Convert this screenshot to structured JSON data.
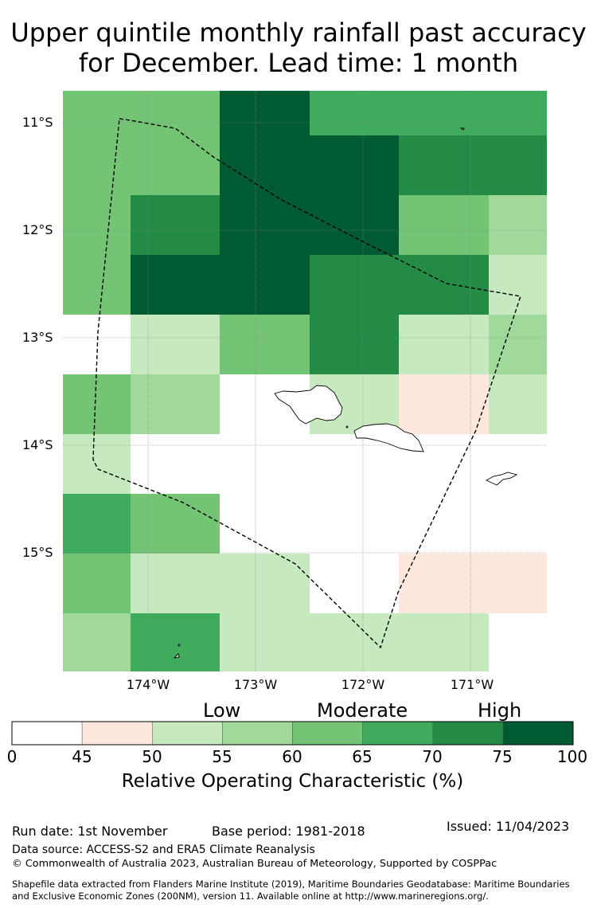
{
  "title": {
    "line1": "Upper quintile monthly rainfall past accuracy",
    "line2": "for December. Lead time: 1 month"
  },
  "map": {
    "lat_labels": [
      "11°S",
      "12°S",
      "13°S",
      "14°S",
      "15°S"
    ],
    "lon_labels": [
      "174°W",
      "173°W",
      "172°W",
      "171°W"
    ],
    "colors": {
      "c45": "#ffffff",
      "c50": "#fee8de",
      "c55": "#c7e9c0",
      "c60": "#a1d99b",
      "c65": "#74c476",
      "c70": "#41ab5d",
      "c75": "#238b45",
      "c100": "#005a32"
    },
    "cells": [
      [
        "c65",
        "c65",
        "c100",
        "c70",
        "c70",
        "c70"
      ],
      [
        "c65",
        "c65",
        "c100",
        "c100",
        "c75",
        "c75"
      ],
      [
        "c65",
        "c75",
        "c100",
        "c100",
        "c65",
        "c60"
      ],
      [
        "c65",
        "c100",
        "c100",
        "c75",
        "c75",
        "c55"
      ],
      [
        "c45",
        "c55",
        "c65",
        "c75",
        "c55",
        "c60"
      ],
      [
        "c65",
        "c60",
        "c45",
        "c55",
        "c50",
        "c55"
      ],
      [
        "c55",
        "c45",
        "c45",
        "c45",
        "c45",
        "c45"
      ],
      [
        "c70",
        "c65",
        "c45",
        "c45",
        "c45",
        "c45"
      ],
      [
        "c65",
        "c55",
        "c55",
        "c45",
        "c50",
        "c50"
      ],
      [
        "c60",
        "c70",
        "c55",
        "c55",
        "c55",
        "c45"
      ]
    ]
  },
  "colorbar": {
    "categories": [
      "Low",
      "Moderate",
      "High"
    ],
    "ticks": [
      "0",
      "45",
      "50",
      "55",
      "60",
      "65",
      "70",
      "75",
      "100"
    ],
    "segment_colors": [
      "#ffffff",
      "#fee8de",
      "#c7e9c0",
      "#a1d99b",
      "#74c476",
      "#41ab5d",
      "#238b45",
      "#005a32"
    ],
    "label": "Relative Operating Characteristic (%)"
  },
  "footer": {
    "run_date": "Run date: 1st November",
    "base_period": "Base period: 1981-2018",
    "issued": "Issued: 11/04/2023",
    "data_source": "Data source: ACCESS-S2 and ERA5 Climate Reanalysis",
    "copyright": "© Commonwealth of Australia 2023, Australian Bureau of Meteorology, Supported by COSPPac",
    "shapefile_line1": "Shapefile data extracted from Flanders Marine Institute (2019), Maritime Boundaries Geodatabase: Maritime Boundaries",
    "shapefile_line2": "and Exclusive Economic Zones (200NM), version 11. Available online at http://www.marineregions.org/."
  }
}
